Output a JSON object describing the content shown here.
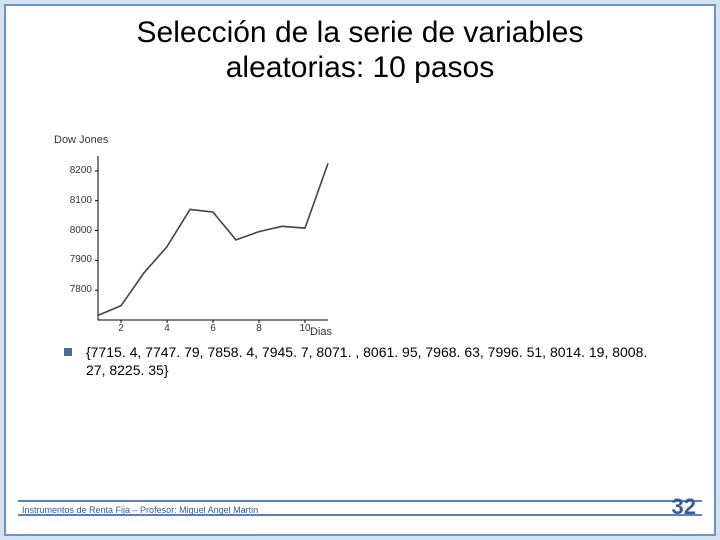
{
  "title_line1": "Selección de la serie de variables",
  "title_line2": "aleatorias: 10 pasos",
  "chart": {
    "type": "line",
    "y_label": "Dow Jones",
    "x_label": "Dias",
    "ylim": [
      7700,
      8250
    ],
    "yticks": [
      7800,
      7900,
      8000,
      8100,
      8200
    ],
    "xlim": [
      1,
      11
    ],
    "xticks": [
      2,
      4,
      6,
      8,
      10
    ],
    "values": [
      7715.4,
      7747.79,
      7858.4,
      7945.7,
      8071.0,
      8061.95,
      7968.63,
      7996.51,
      8014.19,
      8008.27,
      8225.35
    ],
    "line_color": "#444444",
    "line_width": 1.6,
    "axis_color": "#000000",
    "tick_fontsize": 10,
    "label_fontsize": 11,
    "background": "#ffffff"
  },
  "bullet_text": "{7715. 4, 7747. 79, 7858. 4, 7945. 7, 8071. , 8061. 95, 7968. 63, 7996. 51, 8014. 19, 8008. 27, 8225. 35}",
  "footer": "Instrumentos de Renta Fija – Profesor: Miguel Angel Martin",
  "page_number": "32",
  "colors": {
    "slide_border": "#6f93c9",
    "slide_bg": "#ffffff",
    "page_bg": "#d4e3f4",
    "accent": "#4a6a9e",
    "footer_stripe": "#5b7ec9",
    "footer_text": "#3a5a99"
  }
}
